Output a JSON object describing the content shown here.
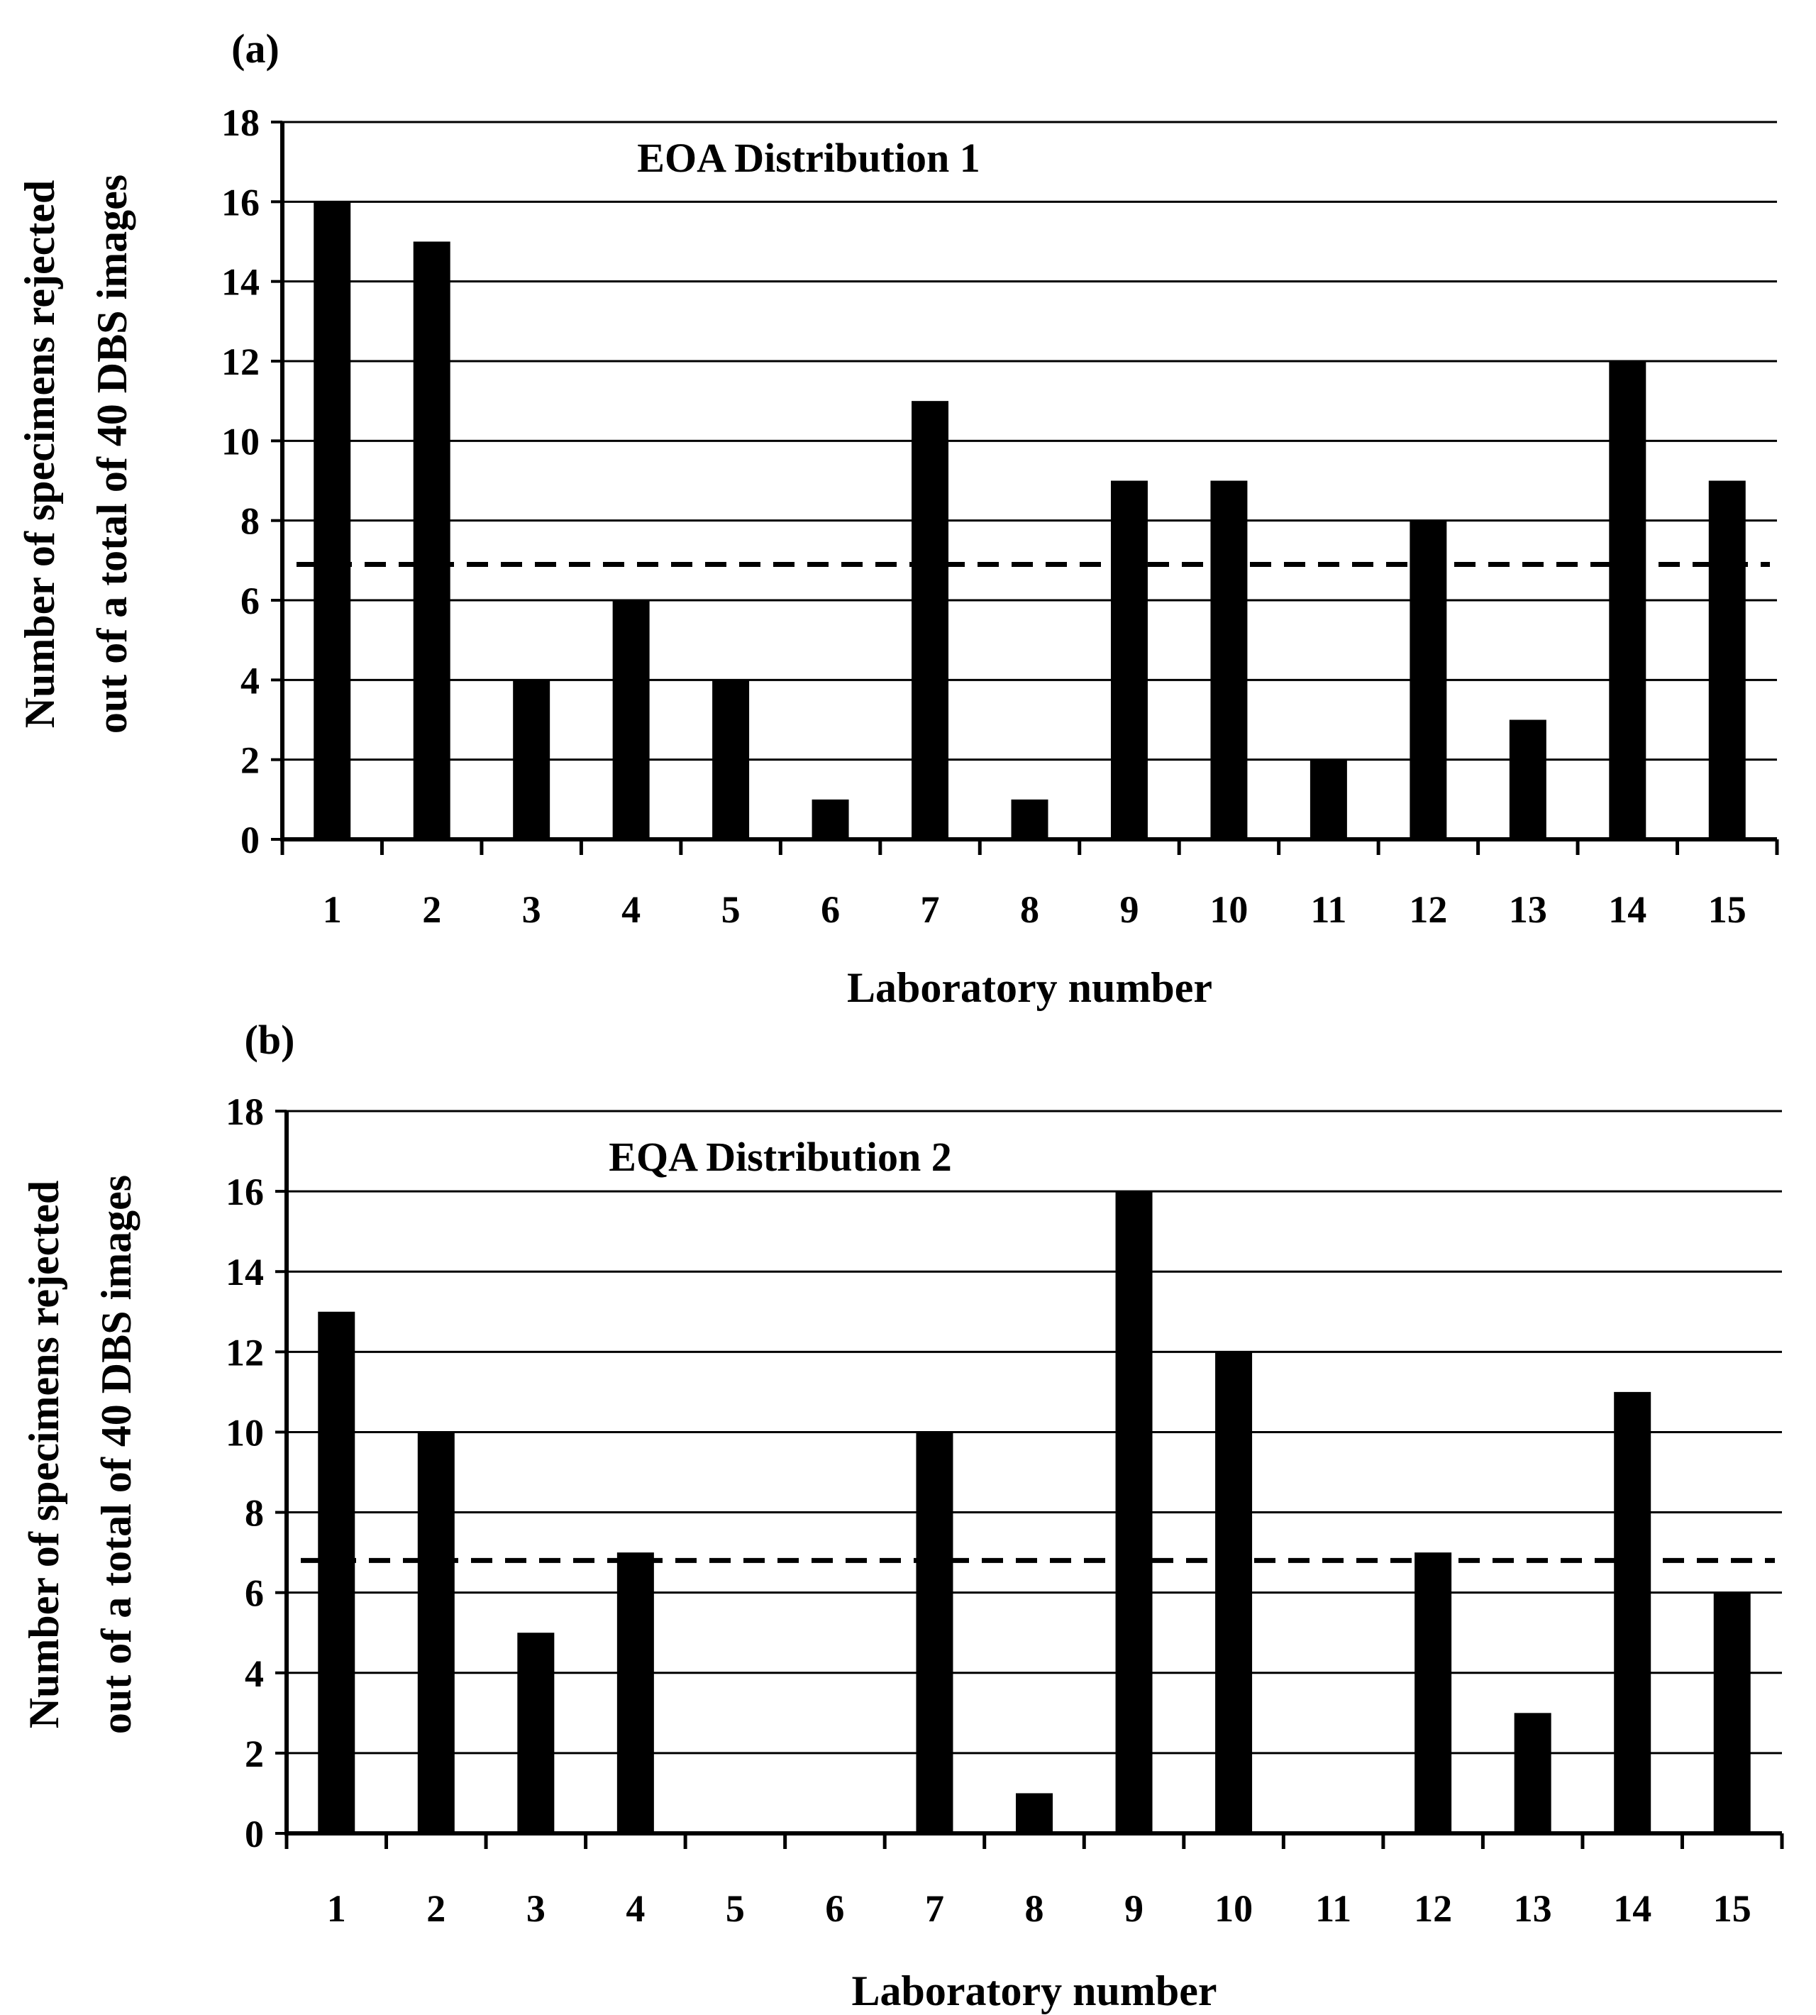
{
  "chart_data": [
    {
      "type": "bar",
      "panel_label": "(a)",
      "title": "EOA Distribution 1",
      "categories": [
        "1",
        "2",
        "3",
        "4",
        "5",
        "6",
        "7",
        "8",
        "9",
        "10",
        "11",
        "12",
        "13",
        "14",
        "15"
      ],
      "values": [
        16,
        15,
        4,
        6,
        4,
        1,
        11,
        1,
        9,
        9,
        2,
        8,
        3,
        12,
        9
      ],
      "reference_line": 6.9,
      "xlabel": "Laboratory number",
      "ylabel_lines": [
        "Number of specimens rejected",
        "out of a total of 40 DBS images"
      ],
      "ylim": [
        0,
        18
      ],
      "yticks": [
        0,
        2,
        4,
        6,
        8,
        10,
        12,
        14,
        16,
        18
      ],
      "grid": true,
      "bar_color": "#000000"
    },
    {
      "type": "bar",
      "panel_label": "(b)",
      "title": "EQA Distribution 2",
      "categories": [
        "1",
        "2",
        "3",
        "4",
        "5",
        "6",
        "7",
        "8",
        "9",
        "10",
        "11",
        "12",
        "13",
        "14",
        "15"
      ],
      "values": [
        13,
        10,
        5,
        7,
        0,
        0,
        10,
        1,
        16,
        12,
        0,
        7,
        3,
        11,
        6
      ],
      "reference_line": 6.8,
      "xlabel": "Laboratory number",
      "ylabel_lines": [
        "Number of specimens rejected",
        "out of a total of 40 DBS images"
      ],
      "ylim": [
        0,
        18
      ],
      "yticks": [
        0,
        2,
        4,
        6,
        8,
        10,
        12,
        14,
        16,
        18
      ],
      "grid": true,
      "bar_color": "#000000"
    }
  ]
}
